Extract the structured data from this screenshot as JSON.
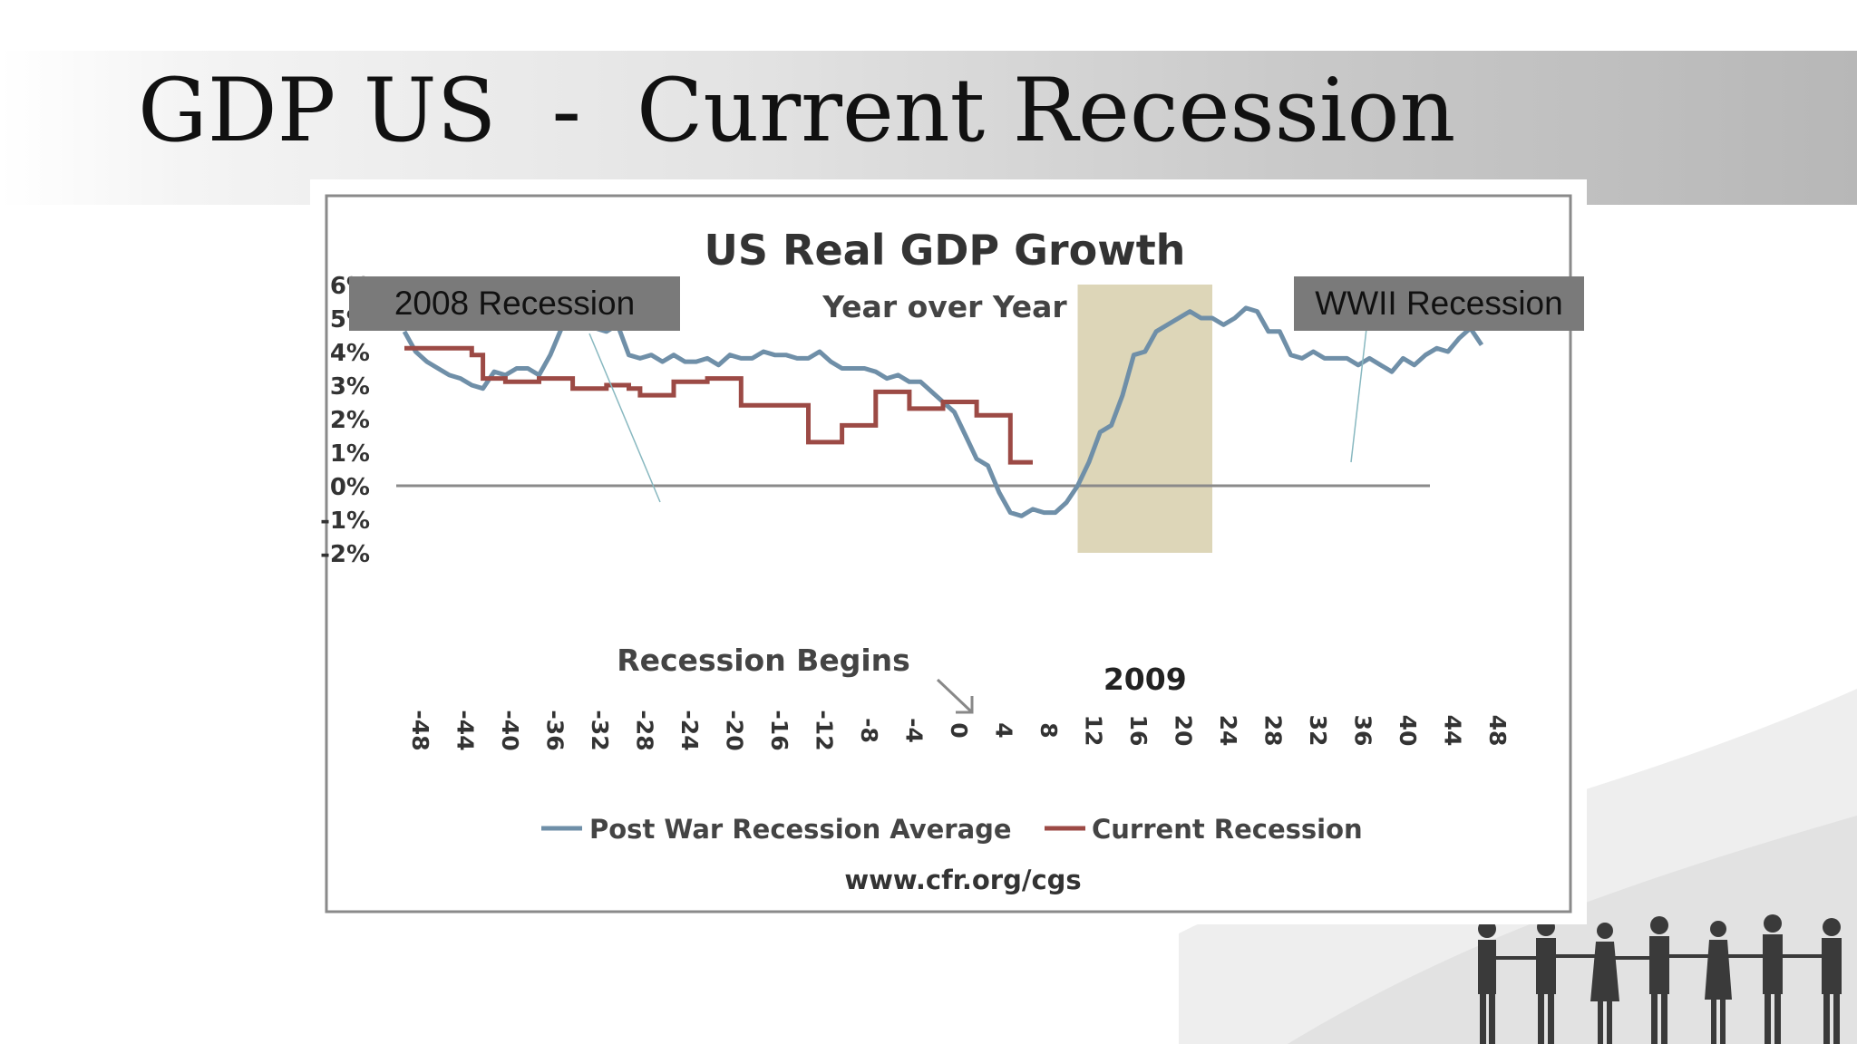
{
  "slide": {
    "title": "GDP US  -  Current Recession"
  },
  "callouts": {
    "recession_2008": "2008 Recession",
    "wwii_recession": "WWII Recession"
  },
  "colors": {
    "post_war": "#6f8fa8",
    "current": "#9c4a45",
    "shade": "#ddd6b8",
    "callout_bg": "#7a7a7a"
  },
  "chart_data": {
    "type": "line",
    "title": "US Real GDP Growth",
    "subtitle": "Year over Year",
    "source": "www.cfr.org/cgs",
    "annotation_recession_begins": "Recession Begins",
    "annotation_shade_label": "2009",
    "shaded_range": [
      12,
      24
    ],
    "xlim": [
      -48,
      48
    ],
    "ylim": [
      -2,
      6
    ],
    "x_ticks": [
      -48,
      -44,
      -40,
      -36,
      -32,
      -28,
      -24,
      -20,
      -16,
      -12,
      -8,
      -4,
      0,
      4,
      8,
      12,
      16,
      20,
      24,
      28,
      32,
      36,
      40,
      44,
      48
    ],
    "x_tick_labels": [
      "-48",
      "-44",
      "-40",
      "-36",
      "-32",
      "-28",
      "-24",
      "-20",
      "-16",
      "-12",
      "-8",
      "-4",
      "0",
      "4",
      "8",
      "12",
      "16",
      "20",
      "24",
      "28",
      "32",
      "36",
      "40",
      "44",
      "48"
    ],
    "y_ticks": [
      6,
      5,
      4,
      3,
      2,
      1,
      0,
      -1,
      -2
    ],
    "y_tick_labels": [
      "6%",
      "5%",
      "4%",
      "3%",
      "2%",
      "1%",
      "0%",
      "-1%",
      "-2%"
    ],
    "legend": "bottom",
    "series": [
      {
        "name": "Post War Recession Average",
        "points": [
          [
            -48,
            4.6
          ],
          [
            -47,
            4.0
          ],
          [
            -46,
            3.7
          ],
          [
            -45,
            3.5
          ],
          [
            -44,
            3.3
          ],
          [
            -43,
            3.2
          ],
          [
            -42,
            3.0
          ],
          [
            -41,
            2.9
          ],
          [
            -40,
            3.4
          ],
          [
            -39,
            3.3
          ],
          [
            -38,
            3.5
          ],
          [
            -37,
            3.5
          ],
          [
            -36,
            3.3
          ],
          [
            -35,
            3.9
          ],
          [
            -34,
            4.7
          ],
          [
            -33,
            4.8
          ],
          [
            -32,
            5.0
          ],
          [
            -31,
            4.7
          ],
          [
            -30,
            4.6
          ],
          [
            -29,
            4.8
          ],
          [
            -28,
            3.9
          ],
          [
            -27,
            3.8
          ],
          [
            -26,
            3.9
          ],
          [
            -25,
            3.7
          ],
          [
            -24,
            3.9
          ],
          [
            -23,
            3.7
          ],
          [
            -22,
            3.7
          ],
          [
            -21,
            3.8
          ],
          [
            -20,
            3.6
          ],
          [
            -19,
            3.9
          ],
          [
            -18,
            3.8
          ],
          [
            -17,
            3.8
          ],
          [
            -16,
            4.0
          ],
          [
            -15,
            3.9
          ],
          [
            -14,
            3.9
          ],
          [
            -13,
            3.8
          ],
          [
            -12,
            3.8
          ],
          [
            -11,
            4.0
          ],
          [
            -10,
            3.7
          ],
          [
            -9,
            3.5
          ],
          [
            -8,
            3.5
          ],
          [
            -7,
            3.5
          ],
          [
            -6,
            3.4
          ],
          [
            -5,
            3.2
          ],
          [
            -4,
            3.3
          ],
          [
            -3,
            3.1
          ],
          [
            -2,
            3.1
          ],
          [
            -1,
            2.8
          ],
          [
            0,
            2.5
          ],
          [
            1,
            2.2
          ],
          [
            2,
            1.5
          ],
          [
            3,
            0.8
          ],
          [
            4,
            0.6
          ],
          [
            5,
            -0.2
          ],
          [
            6,
            -0.8
          ],
          [
            7,
            -0.9
          ],
          [
            8,
            -0.7
          ],
          [
            9,
            -0.8
          ],
          [
            10,
            -0.8
          ],
          [
            11,
            -0.5
          ],
          [
            12,
            0.0
          ],
          [
            13,
            0.7
          ],
          [
            14,
            1.6
          ],
          [
            15,
            1.8
          ],
          [
            16,
            2.7
          ],
          [
            17,
            3.9
          ],
          [
            18,
            4.0
          ],
          [
            19,
            4.6
          ],
          [
            20,
            4.8
          ],
          [
            21,
            5.0
          ],
          [
            22,
            5.2
          ],
          [
            23,
            5.0
          ],
          [
            24,
            5.0
          ],
          [
            25,
            4.8
          ],
          [
            26,
            5.0
          ],
          [
            27,
            5.3
          ],
          [
            28,
            5.2
          ],
          [
            29,
            4.6
          ],
          [
            30,
            4.6
          ],
          [
            31,
            3.9
          ],
          [
            32,
            3.8
          ],
          [
            33,
            4.0
          ],
          [
            34,
            3.8
          ],
          [
            35,
            3.8
          ],
          [
            36,
            3.8
          ],
          [
            37,
            3.6
          ],
          [
            38,
            3.8
          ],
          [
            39,
            3.6
          ],
          [
            40,
            3.4
          ],
          [
            41,
            3.8
          ],
          [
            42,
            3.6
          ],
          [
            43,
            3.9
          ],
          [
            44,
            4.1
          ],
          [
            45,
            4.0
          ],
          [
            46,
            4.4
          ],
          [
            47,
            4.7
          ],
          [
            48,
            4.2
          ]
        ]
      },
      {
        "name": "Current Recession",
        "points": [
          [
            -48,
            4.1
          ],
          [
            -45,
            4.1
          ],
          [
            -44,
            4.1
          ],
          [
            -43,
            4.1
          ],
          [
            -42,
            3.9
          ],
          [
            -41,
            3.2
          ],
          [
            -40,
            3.2
          ],
          [
            -39,
            3.1
          ],
          [
            -38,
            3.1
          ],
          [
            -37,
            3.1
          ],
          [
            -36,
            3.2
          ],
          [
            -35,
            3.2
          ],
          [
            -34,
            3.2
          ],
          [
            -33,
            2.9
          ],
          [
            -32,
            2.9
          ],
          [
            -31,
            2.9
          ],
          [
            -30,
            3.0
          ],
          [
            -29,
            3.0
          ],
          [
            -28,
            2.9
          ],
          [
            -27,
            2.7
          ],
          [
            -26,
            2.7
          ],
          [
            -25,
            2.7
          ],
          [
            -24,
            3.1
          ],
          [
            -23,
            3.1
          ],
          [
            -22,
            3.1
          ],
          [
            -21,
            3.2
          ],
          [
            -20,
            3.2
          ],
          [
            -19,
            3.2
          ],
          [
            -18,
            2.4
          ],
          [
            -17,
            2.4
          ],
          [
            -16,
            2.4
          ],
          [
            -15,
            2.4
          ],
          [
            -14,
            2.4
          ],
          [
            -13,
            2.4
          ],
          [
            -12,
            1.3
          ],
          [
            -11,
            1.3
          ],
          [
            -10,
            1.3
          ],
          [
            -9,
            1.8
          ],
          [
            -8,
            1.8
          ],
          [
            -7,
            1.8
          ],
          [
            -6,
            2.8
          ],
          [
            -5,
            2.8
          ],
          [
            -4,
            2.8
          ],
          [
            -3,
            2.3
          ],
          [
            -2,
            2.3
          ],
          [
            -1,
            2.3
          ],
          [
            0,
            2.5
          ],
          [
            1,
            2.5
          ],
          [
            2,
            2.5
          ],
          [
            3,
            2.1
          ],
          [
            4,
            2.1
          ],
          [
            5,
            2.1
          ],
          [
            6,
            0.7
          ],
          [
            7,
            0.7
          ],
          [
            8,
            0.7
          ]
        ]
      }
    ]
  }
}
